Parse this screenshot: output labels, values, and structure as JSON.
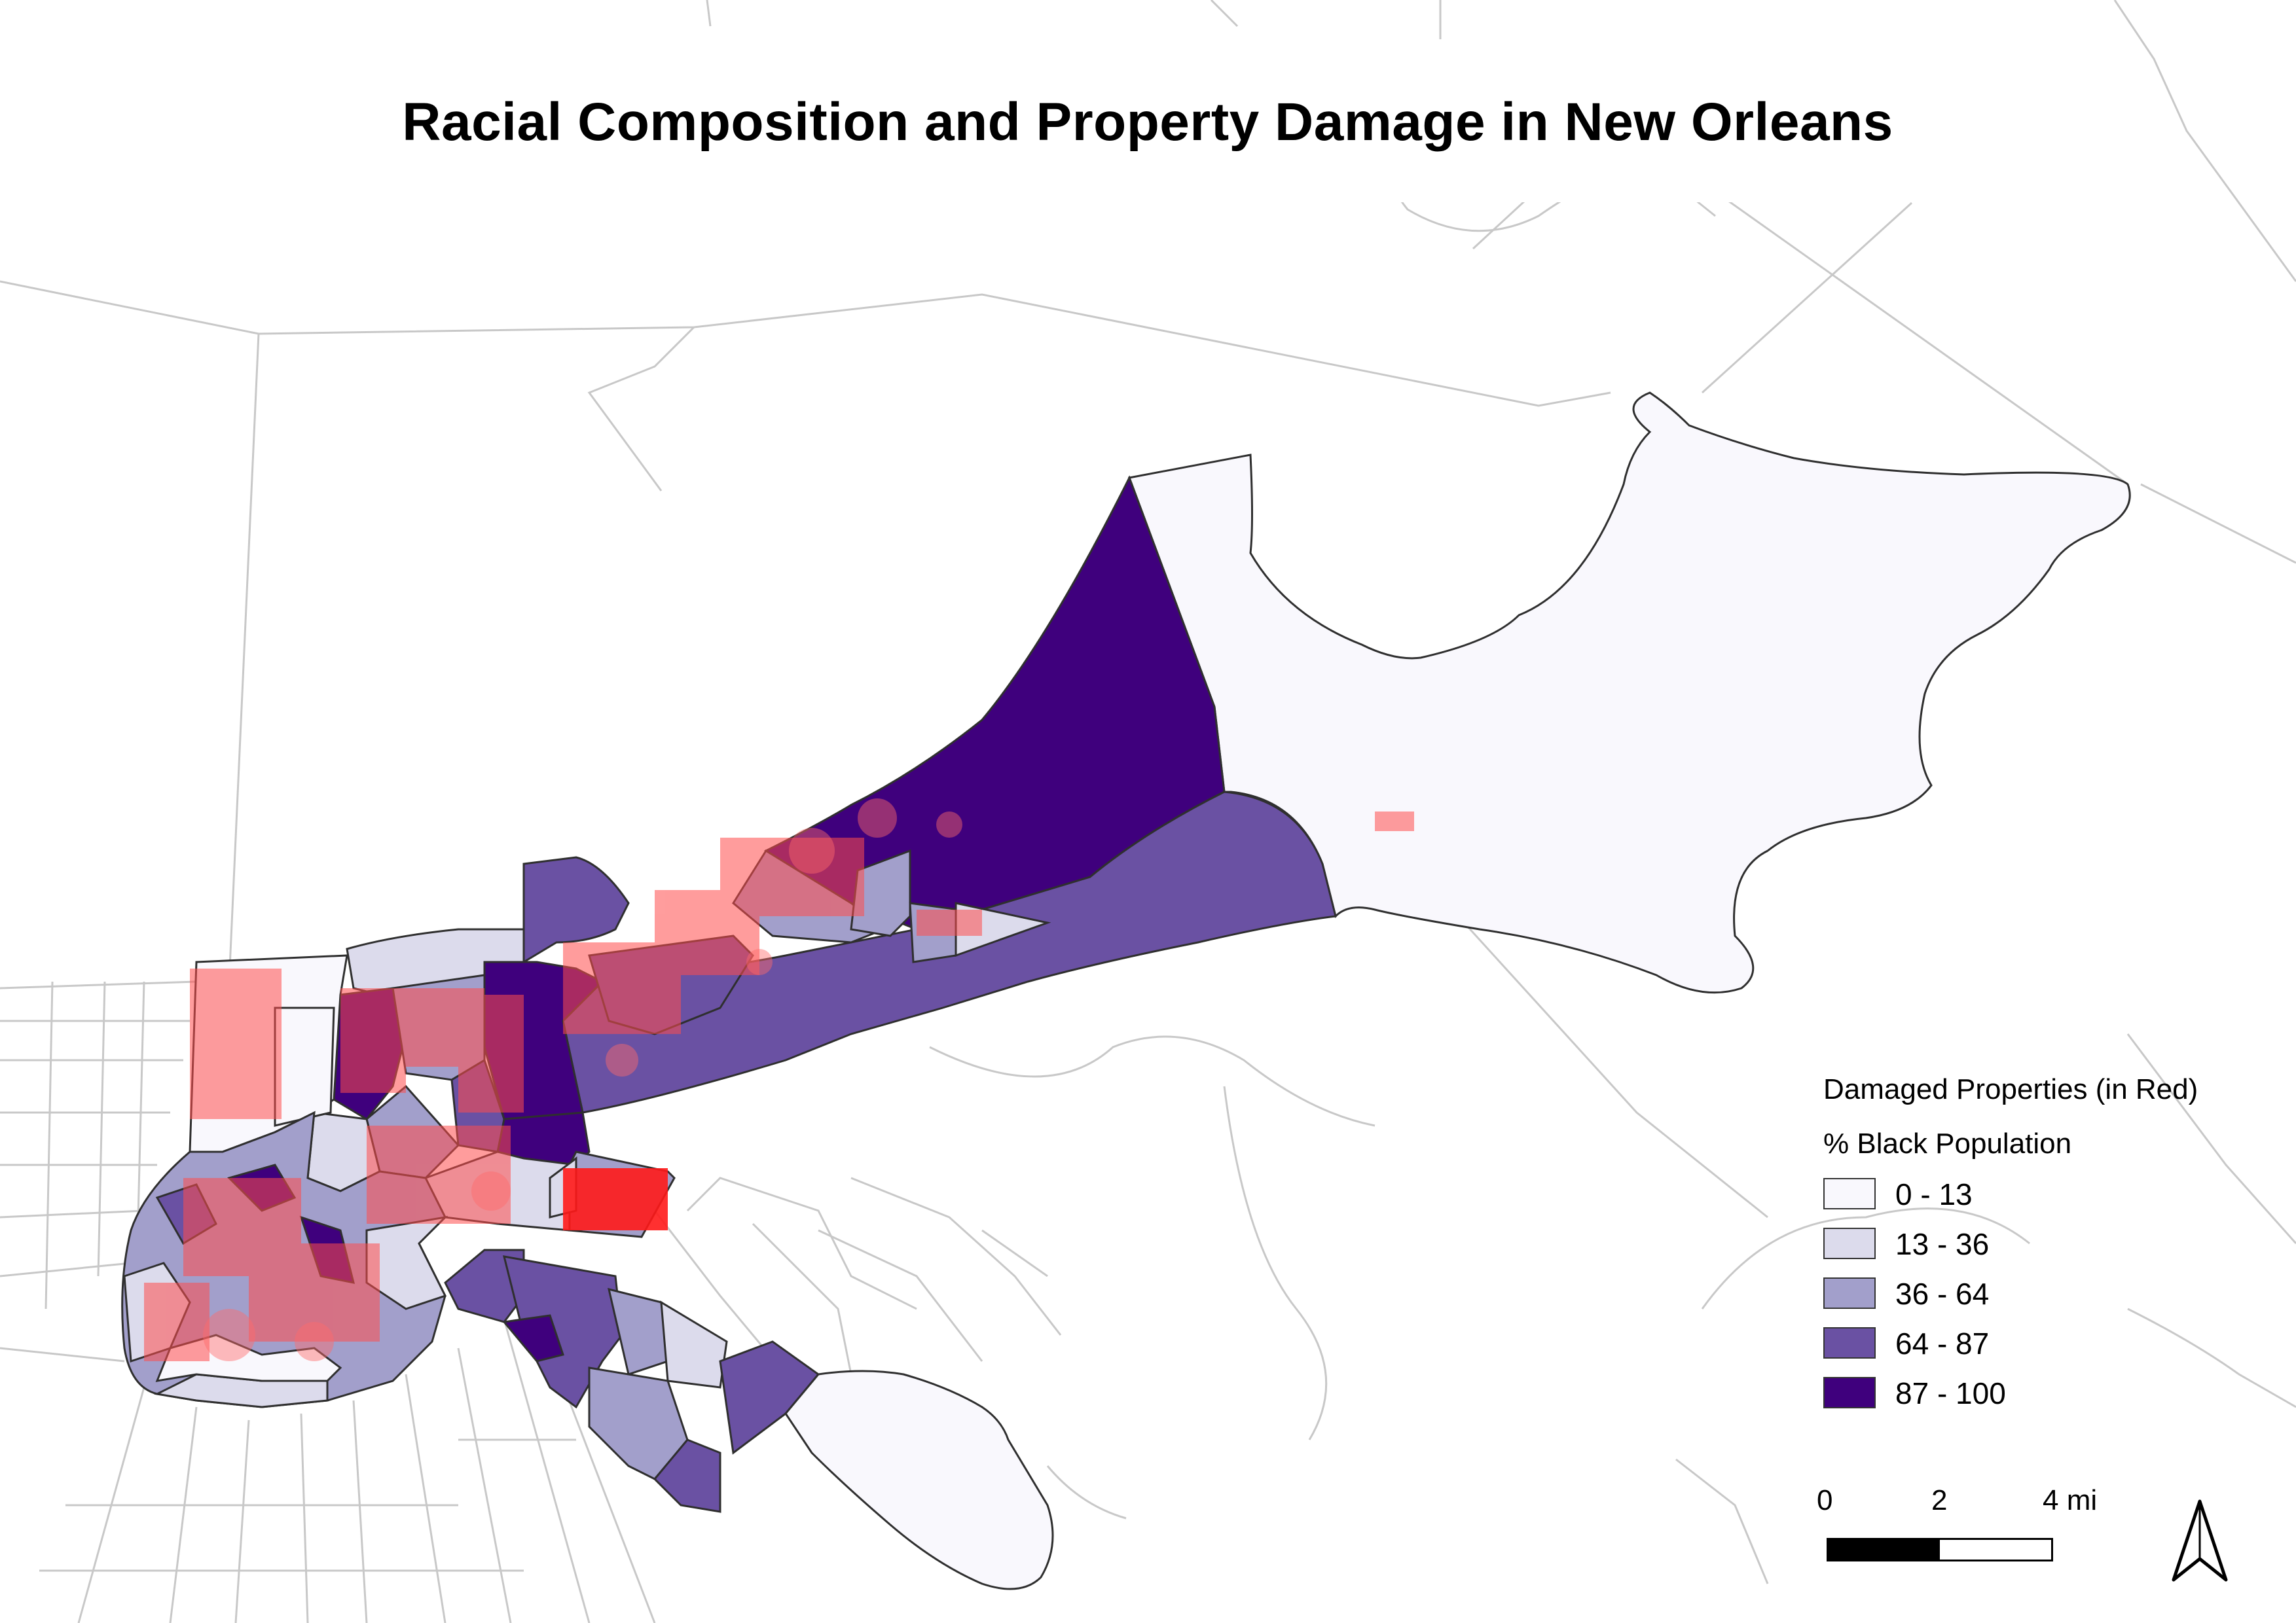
{
  "title": "Racial Composition and Property Damage in New Orleans",
  "colors": {
    "damage_points": "#ff2a2a",
    "boundary_lines": "#c8c8c8",
    "tract_outline": "#3a3a3a",
    "background": "#ffffff"
  },
  "legend": {
    "damage_heading": "Damaged Properties (in Red)",
    "population_heading": "% Black Population",
    "classes": [
      {
        "label": "0 - 13",
        "color": "#f9f8fd"
      },
      {
        "label": "13 - 36",
        "color": "#dcdbec"
      },
      {
        "label": "36 - 64",
        "color": "#a29fcb"
      },
      {
        "label": "64 - 87",
        "color": "#6a51a3"
      },
      {
        "label": "87 - 100",
        "color": "#3f007d"
      }
    ]
  },
  "scale_bar": {
    "labels": [
      "0",
      "2",
      "4 mi"
    ]
  },
  "north_arrow": {
    "icon": "north-arrow-icon"
  }
}
